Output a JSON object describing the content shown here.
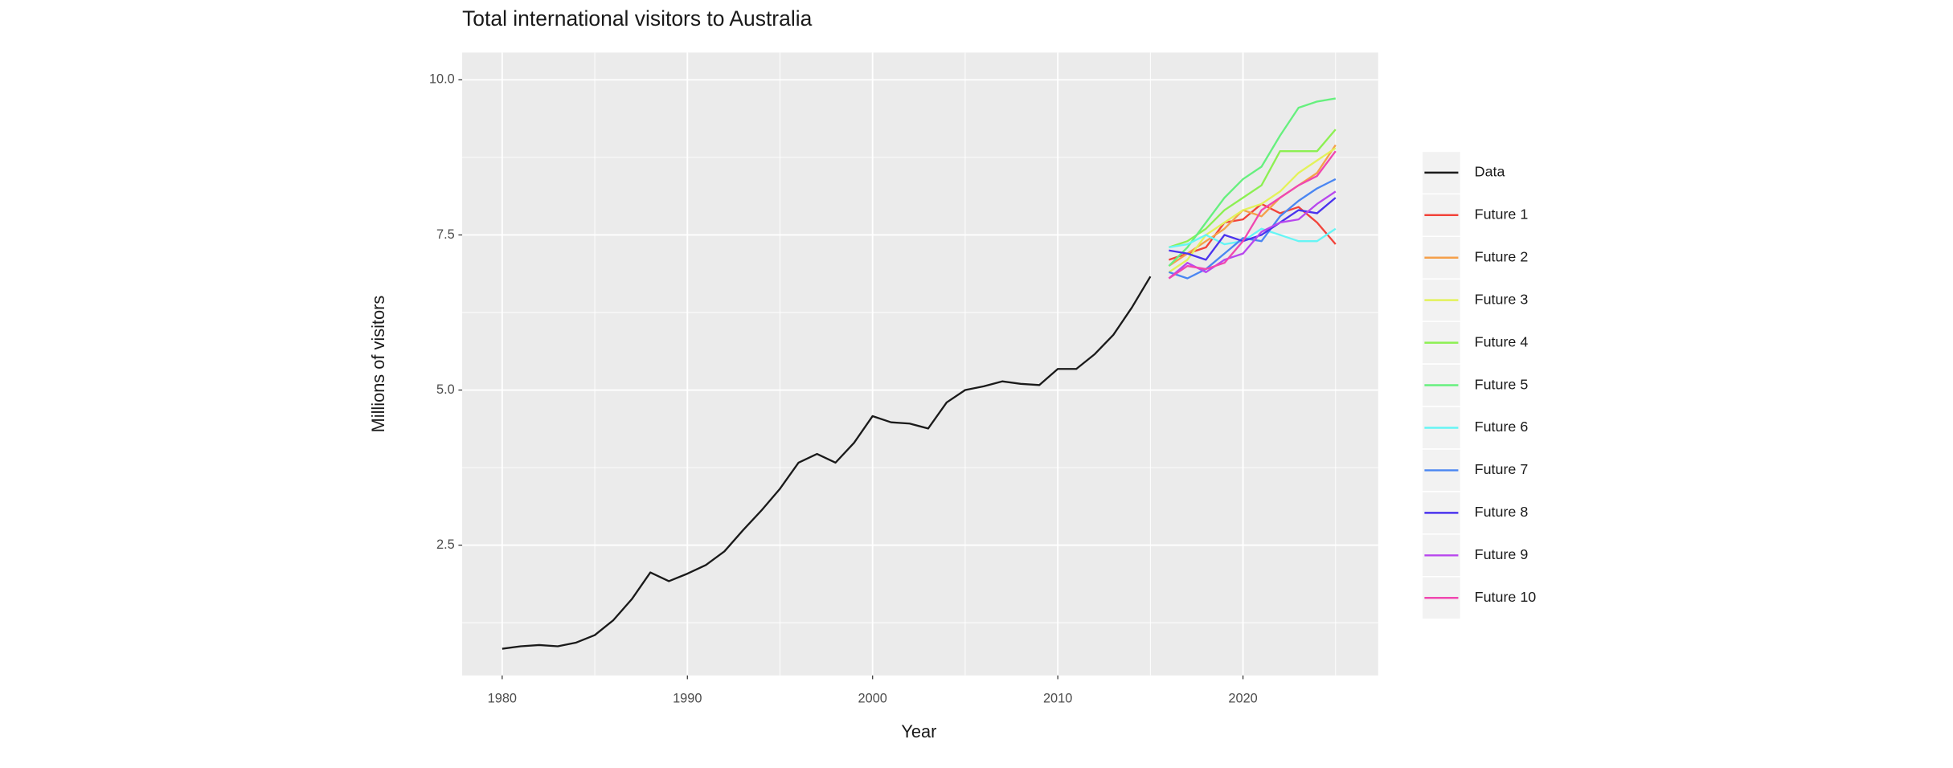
{
  "chart_data": {
    "type": "line",
    "title": "Total international visitors to Australia",
    "x_label": "Year",
    "y_label": "Millions of visitors",
    "x": [
      1980,
      1981,
      1982,
      1983,
      1984,
      1985,
      1986,
      1987,
      1988,
      1989,
      1990,
      1991,
      1992,
      1993,
      1994,
      1995,
      1996,
      1997,
      1998,
      1999,
      2000,
      2001,
      2002,
      2003,
      2004,
      2005,
      2006,
      2007,
      2008,
      2009,
      2010,
      2011,
      2012,
      2013,
      2014,
      2015,
      2016,
      2017,
      2018,
      2019,
      2020,
      2021,
      2022,
      2023,
      2024,
      2025
    ],
    "series": [
      {
        "name": "Data",
        "color": "#1a1a1a",
        "values": [
          0.83,
          0.87,
          0.89,
          0.87,
          0.93,
          1.05,
          1.29,
          1.63,
          2.06,
          1.92,
          2.04,
          2.18,
          2.4,
          2.74,
          3.06,
          3.41,
          3.83,
          3.97,
          3.83,
          4.15,
          4.58,
          4.48,
          4.46,
          4.38,
          4.8,
          5.0,
          5.06,
          5.14,
          5.1,
          5.08,
          5.34,
          5.34,
          5.58,
          5.89,
          6.33,
          6.83,
          null,
          null,
          null,
          null,
          null,
          null,
          null,
          null,
          null,
          null
        ]
      },
      {
        "name": "Future 1",
        "color": "#f2433a",
        "values": [
          null,
          null,
          null,
          null,
          null,
          null,
          null,
          null,
          null,
          null,
          null,
          null,
          null,
          null,
          null,
          null,
          null,
          null,
          null,
          null,
          null,
          null,
          null,
          null,
          null,
          null,
          null,
          null,
          null,
          null,
          null,
          null,
          null,
          null,
          null,
          null,
          7.1,
          7.2,
          7.3,
          7.7,
          7.75,
          8.0,
          7.85,
          7.95,
          7.7,
          7.35
        ]
      },
      {
        "name": "Future 2",
        "color": "#f5a04a",
        "values": [
          null,
          null,
          null,
          null,
          null,
          null,
          null,
          null,
          null,
          null,
          null,
          null,
          null,
          null,
          null,
          null,
          null,
          null,
          null,
          null,
          null,
          null,
          null,
          null,
          null,
          null,
          null,
          null,
          null,
          null,
          null,
          null,
          null,
          null,
          null,
          null,
          7.0,
          7.2,
          7.4,
          7.6,
          7.9,
          7.8,
          8.1,
          8.3,
          8.5,
          8.95
        ]
      },
      {
        "name": "Future 3",
        "color": "#e3f25a",
        "values": [
          null,
          null,
          null,
          null,
          null,
          null,
          null,
          null,
          null,
          null,
          null,
          null,
          null,
          null,
          null,
          null,
          null,
          null,
          null,
          null,
          null,
          null,
          null,
          null,
          null,
          null,
          null,
          null,
          null,
          null,
          null,
          null,
          null,
          null,
          null,
          null,
          6.9,
          7.1,
          7.5,
          7.7,
          7.9,
          8.0,
          8.2,
          8.5,
          8.7,
          8.9
        ]
      },
      {
        "name": "Future 4",
        "color": "#8cf052",
        "values": [
          null,
          null,
          null,
          null,
          null,
          null,
          null,
          null,
          null,
          null,
          null,
          null,
          null,
          null,
          null,
          null,
          null,
          null,
          null,
          null,
          null,
          null,
          null,
          null,
          null,
          null,
          null,
          null,
          null,
          null,
          null,
          null,
          null,
          null,
          null,
          null,
          7.3,
          7.4,
          7.6,
          7.9,
          8.1,
          8.3,
          8.85,
          8.85,
          8.85,
          9.2
        ]
      },
      {
        "name": "Future 5",
        "color": "#66f07e",
        "values": [
          null,
          null,
          null,
          null,
          null,
          null,
          null,
          null,
          null,
          null,
          null,
          null,
          null,
          null,
          null,
          null,
          null,
          null,
          null,
          null,
          null,
          null,
          null,
          null,
          null,
          null,
          null,
          null,
          null,
          null,
          null,
          null,
          null,
          null,
          null,
          null,
          7.0,
          7.3,
          7.7,
          8.1,
          8.4,
          8.6,
          9.1,
          9.55,
          9.65,
          9.7
        ]
      },
      {
        "name": "Future 6",
        "color": "#66f5f5",
        "values": [
          null,
          null,
          null,
          null,
          null,
          null,
          null,
          null,
          null,
          null,
          null,
          null,
          null,
          null,
          null,
          null,
          null,
          null,
          null,
          null,
          null,
          null,
          null,
          null,
          null,
          null,
          null,
          null,
          null,
          null,
          null,
          null,
          null,
          null,
          null,
          null,
          7.3,
          7.35,
          7.5,
          7.35,
          7.4,
          7.6,
          7.5,
          7.4,
          7.4,
          7.6
        ]
      },
      {
        "name": "Future 7",
        "color": "#4a86f2",
        "values": [
          null,
          null,
          null,
          null,
          null,
          null,
          null,
          null,
          null,
          null,
          null,
          null,
          null,
          null,
          null,
          null,
          null,
          null,
          null,
          null,
          null,
          null,
          null,
          null,
          null,
          null,
          null,
          null,
          null,
          null,
          null,
          null,
          null,
          null,
          null,
          null,
          6.9,
          6.8,
          6.95,
          7.2,
          7.45,
          7.4,
          7.8,
          8.05,
          8.25,
          8.4
        ]
      },
      {
        "name": "Future 8",
        "color": "#4a33ee",
        "values": [
          null,
          null,
          null,
          null,
          null,
          null,
          null,
          null,
          null,
          null,
          null,
          null,
          null,
          null,
          null,
          null,
          null,
          null,
          null,
          null,
          null,
          null,
          null,
          null,
          null,
          null,
          null,
          null,
          null,
          null,
          null,
          null,
          null,
          null,
          null,
          null,
          7.25,
          7.2,
          7.1,
          7.5,
          7.4,
          7.5,
          7.7,
          7.9,
          7.85,
          8.1
        ]
      },
      {
        "name": "Future 9",
        "color": "#b847ee",
        "values": [
          null,
          null,
          null,
          null,
          null,
          null,
          null,
          null,
          null,
          null,
          null,
          null,
          null,
          null,
          null,
          null,
          null,
          null,
          null,
          null,
          null,
          null,
          null,
          null,
          null,
          null,
          null,
          null,
          null,
          null,
          null,
          null,
          null,
          null,
          null,
          null,
          6.8,
          7.05,
          6.9,
          7.1,
          7.2,
          7.55,
          7.7,
          7.75,
          8.0,
          8.2
        ]
      },
      {
        "name": "Future 10",
        "color": "#f047b0",
        "values": [
          null,
          null,
          null,
          null,
          null,
          null,
          null,
          null,
          null,
          null,
          null,
          null,
          null,
          null,
          null,
          null,
          null,
          null,
          null,
          null,
          null,
          null,
          null,
          null,
          null,
          null,
          null,
          null,
          null,
          null,
          null,
          null,
          null,
          null,
          null,
          null,
          6.8,
          7.0,
          6.95,
          7.05,
          7.4,
          7.9,
          8.1,
          8.3,
          8.45,
          8.85
        ]
      }
    ],
    "xlim": [
      1977.84,
      2027.3
    ],
    "xticks": [
      1980,
      1990,
      2000,
      2010,
      2020
    ],
    "ylim": [
      0.4,
      10.44
    ],
    "yticks": [
      2.5,
      {
        "value": 5,
        "label": "5.0"
      },
      7.5,
      {
        "value": 10,
        "label": "10.0"
      }
    ],
    "grid": true,
    "legend": "right"
  }
}
